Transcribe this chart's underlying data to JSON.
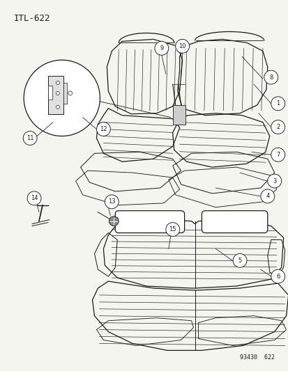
{
  "title": "ITL-622",
  "part_number": "93430  622",
  "bg": "#f5f5f0",
  "lc": "#1a1a1a",
  "fig_w": 4.14,
  "fig_h": 5.33,
  "dpi": 100
}
